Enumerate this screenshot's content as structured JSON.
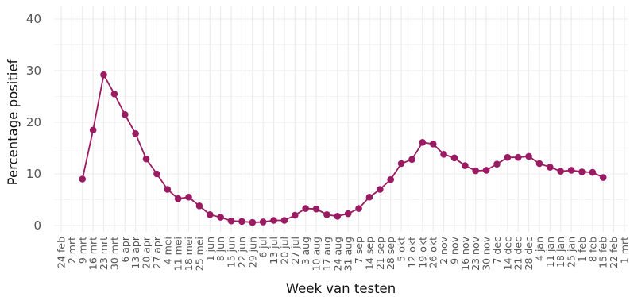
{
  "chart_data": {
    "type": "line",
    "xlabel": "Week van testen",
    "ylabel": "Percentage positief",
    "ylim": [
      0,
      40
    ],
    "yticks": [
      0,
      10,
      20,
      30,
      40
    ],
    "grid": true,
    "legend": "none",
    "colors": {
      "series": "#9b1b62",
      "grid": "#ebebeb",
      "tick_text": "#555555"
    },
    "categories": [
      "24 feb",
      "2 mrt",
      "9 mrt",
      "16 mrt",
      "23 mrt",
      "30 mrt",
      "6 apr",
      "13 apr",
      "20 apr",
      "27 apr",
      "4 mei",
      "11 mei",
      "18 mei",
      "25 mei",
      "1 jun",
      "8 jun",
      "15 jun",
      "22 jun",
      "29 jun",
      "6 jul",
      "13 jul",
      "20 jul",
      "27 jul",
      "3 aug",
      "10 aug",
      "17 aug",
      "24 aug",
      "31 aug",
      "7 sep",
      "14 sep",
      "21 sep",
      "28 sep",
      "5 okt",
      "12 okt",
      "19 okt",
      "26 okt",
      "2 nov",
      "9 nov",
      "16 nov",
      "23 nov",
      "30 nov",
      "7 dec",
      "14 dec",
      "21 dec",
      "28 dec",
      "4 jan",
      "11 jan",
      "18 jan",
      "25 jan",
      "1 feb",
      "8 feb",
      "15 feb",
      "22 feb",
      "1 mrt"
    ],
    "series": [
      {
        "values": [
          null,
          null,
          9.0,
          18.5,
          29.2,
          25.5,
          21.5,
          17.8,
          12.9,
          10.0,
          7.0,
          5.2,
          5.5,
          3.8,
          2.1,
          1.6,
          0.9,
          0.8,
          0.6,
          0.7,
          1.0,
          1.0,
          2.0,
          3.3,
          3.2,
          2.1,
          1.8,
          2.3,
          3.3,
          5.5,
          7.0,
          8.9,
          12.0,
          12.8,
          16.1,
          15.8,
          13.8,
          13.1,
          11.6,
          10.6,
          10.7,
          11.9,
          13.2,
          13.2,
          13.4,
          12.0,
          11.3,
          10.5,
          10.7,
          10.4,
          10.3,
          9.3,
          null,
          null
        ]
      }
    ]
  }
}
